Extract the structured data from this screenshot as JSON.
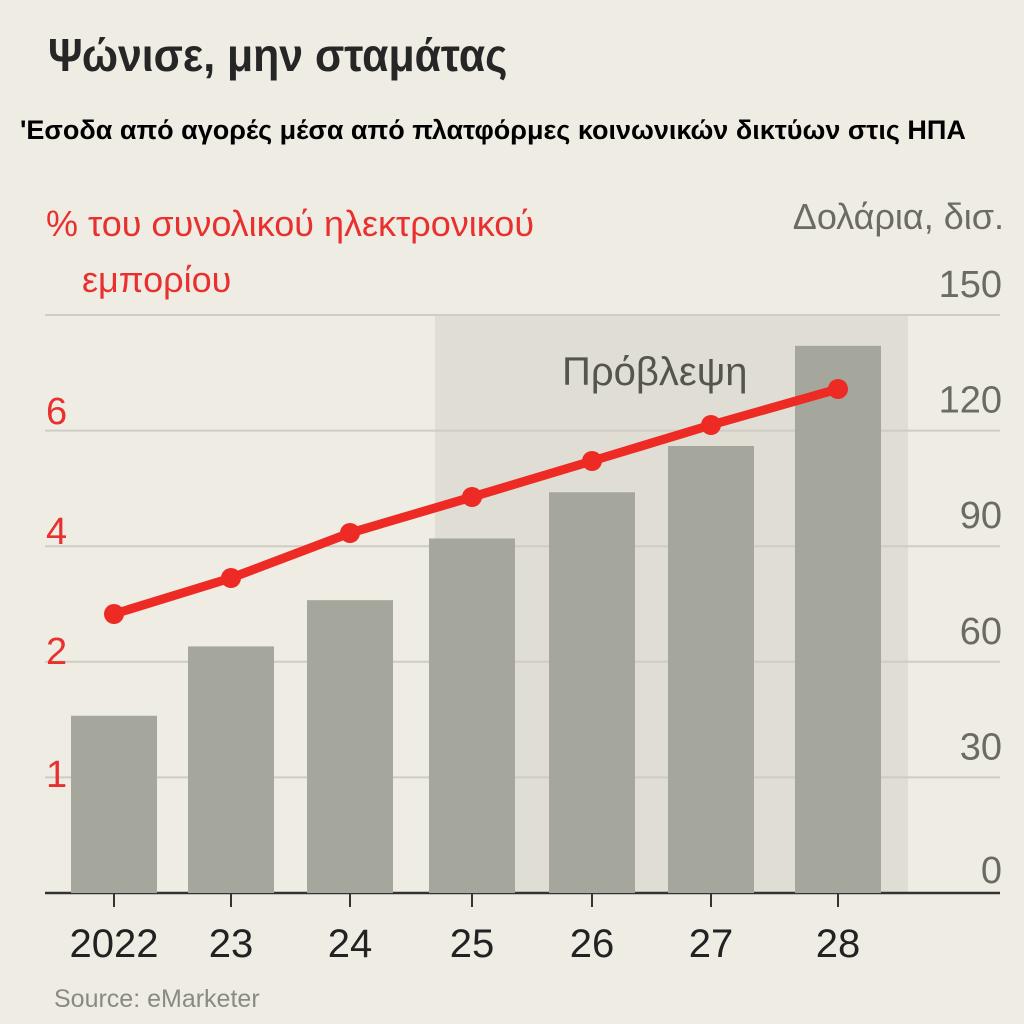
{
  "title": "Ψώνισε, μην σταμάτας",
  "subtitle": "'Εσοδα από αγορές μέσα από πλατφόρμες κοινωνικών δικτύων στις ΗΠΑ",
  "source": "Source: eMarketer",
  "colors": {
    "background": "#efece4",
    "bars": "#a6a79c",
    "line": "#ee2a24",
    "forecast_shade": "#e0ddd5",
    "left_axis": "#e8312f",
    "right_axis": "#6b6b66"
  },
  "chart_data": {
    "type": "bar",
    "title": "Ψώνισε, μην σταμάτας",
    "categories": [
      "2022",
      "23",
      "24",
      "25",
      "26",
      "27",
      "28"
    ],
    "annotation": "Πρόβλεψη",
    "forecast_from": "25",
    "grid": true,
    "series": [
      {
        "type": "bar",
        "axis": "right",
        "values": [
          46,
          64,
          76,
          92,
          104,
          116,
          142
        ]
      },
      {
        "type": "line",
        "axis": "left",
        "values": [
          2.6,
          3.2,
          3.95,
          4.55,
          5.15,
          5.75,
          6.35
        ]
      }
    ],
    "left_axis": {
      "label_line1": "% του συνολικού ηλεκτρονικού",
      "label_line2": "εμπορίου",
      "ticks": [
        "1",
        "2",
        "4",
        "6"
      ]
    },
    "right_axis": {
      "label": "Δολάρια, δισ.",
      "ticks": [
        "0",
        "30",
        "60",
        "90",
        "120",
        "150"
      ],
      "ylim": [
        0,
        150
      ]
    }
  }
}
